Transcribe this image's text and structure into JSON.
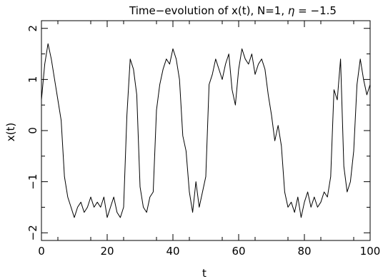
{
  "chart_data": {
    "type": "line",
    "title_parts": [
      "Time−evolution of x(t), N=1, ",
      "η",
      " = −1.5"
    ],
    "xlabel": "t",
    "ylabel": "x(t)",
    "xlim": [
      0,
      100
    ],
    "ylim": [
      -2.15,
      2.15
    ],
    "x_ticks": [
      0,
      20,
      40,
      60,
      80,
      100
    ],
    "x_tick_labels": [
      "0",
      "20",
      "40",
      "60",
      "80",
      "100"
    ],
    "y_ticks": [
      -2,
      -1,
      0,
      1,
      2
    ],
    "y_tick_labels": [
      "−2",
      "−1",
      "0",
      "1",
      "2"
    ],
    "grid": false,
    "legend": "none",
    "line_color": "#000000",
    "series": [
      {
        "x": [
          0,
          1,
          2,
          3,
          4,
          5,
          6,
          7,
          8,
          9,
          10,
          11,
          12,
          13,
          14,
          15,
          16,
          17,
          18,
          19,
          20,
          21,
          22,
          23,
          24,
          25,
          26,
          27,
          28,
          29,
          30,
          31,
          32,
          33,
          34,
          35,
          36,
          37,
          38,
          39,
          40,
          41,
          42,
          43,
          44,
          45,
          46,
          47,
          48,
          49,
          50,
          51,
          52,
          53,
          54,
          55,
          56,
          57,
          58,
          59,
          60,
          61,
          62,
          63,
          64,
          65,
          66,
          67,
          68,
          69,
          70,
          71,
          72,
          73,
          74,
          75,
          76,
          77,
          78,
          79,
          80,
          81,
          82,
          83,
          84,
          85,
          86,
          87,
          88,
          89,
          90,
          91,
          92,
          93,
          94,
          95,
          96,
          97,
          98,
          99,
          100
        ],
        "y": [
          0.6,
          1.3,
          1.7,
          1.4,
          1.0,
          0.6,
          0.2,
          -0.9,
          -1.3,
          -1.5,
          -1.7,
          -1.5,
          -1.4,
          -1.6,
          -1.5,
          -1.3,
          -1.5,
          -1.4,
          -1.5,
          -1.3,
          -1.7,
          -1.5,
          -1.3,
          -1.6,
          -1.7,
          -1.5,
          0.3,
          1.4,
          1.2,
          0.7,
          -1.1,
          -1.5,
          -1.6,
          -1.3,
          -1.2,
          0.4,
          0.9,
          1.2,
          1.4,
          1.3,
          1.6,
          1.4,
          1.0,
          -0.1,
          -0.4,
          -1.2,
          -1.6,
          -1.0,
          -1.5,
          -1.2,
          -0.9,
          0.9,
          1.1,
          1.4,
          1.2,
          1.0,
          1.3,
          1.5,
          0.8,
          0.5,
          1.2,
          1.6,
          1.4,
          1.3,
          1.5,
          1.1,
          1.3,
          1.4,
          1.2,
          0.7,
          0.3,
          -0.2,
          0.1,
          -0.3,
          -1.2,
          -1.5,
          -1.4,
          -1.6,
          -1.3,
          -1.7,
          -1.4,
          -1.2,
          -1.5,
          -1.3,
          -1.5,
          -1.4,
          -1.2,
          -1.3,
          -0.9,
          0.8,
          0.6,
          1.4,
          -0.7,
          -1.2,
          -1.0,
          -0.4,
          0.9,
          1.4,
          1.0,
          0.7,
          0.9
        ]
      }
    ]
  }
}
